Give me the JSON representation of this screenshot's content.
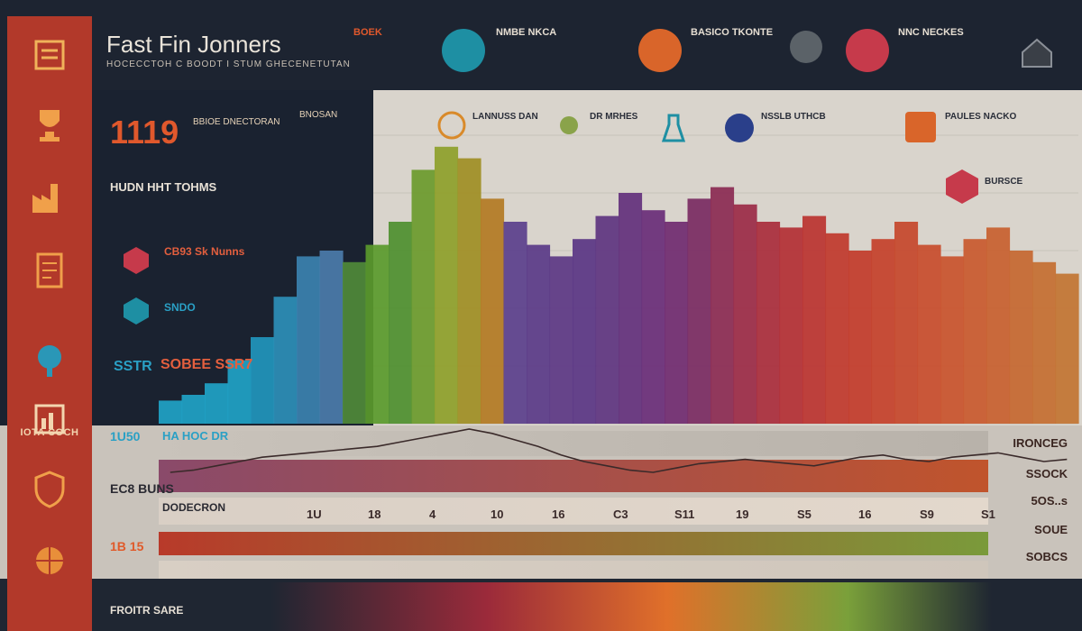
{
  "header": {
    "title": "Fast Fin Jonners",
    "subtitle": "HOCECCTOH C BOODT I STUM GHECENETUTAN",
    "items": [
      {
        "label": "BOEK",
        "icon": "document-icon",
        "color": "#d04a2a"
      },
      {
        "label": "NMBE NKCA",
        "icon": "tablet-icon",
        "color": "#1e8fa3"
      },
      {
        "label": "BASICO TKONTE",
        "icon": "handshake-icon",
        "color": "#d9652a"
      },
      {
        "label": "",
        "icon": "pin-icon",
        "color": "#5b6268"
      },
      {
        "label": "NNC NECKES",
        "icon": "book-icon",
        "color": "#c63a4b"
      },
      {
        "label": "",
        "icon": "house-icon",
        "color": "#3a3f47"
      }
    ]
  },
  "sidebar": {
    "items": [
      {
        "icon": "certificate-icon",
        "caption": ""
      },
      {
        "icon": "trophy-icon",
        "caption": ""
      },
      {
        "icon": "factory-icon",
        "caption": ""
      },
      {
        "icon": "document-icon",
        "caption": ""
      },
      {
        "icon": "tree-icon",
        "caption": ""
      },
      {
        "icon": "chart-icon",
        "caption": "IOTA COCH"
      },
      {
        "icon": "shield-icon",
        "caption": ""
      },
      {
        "icon": "globe-icon",
        "caption": ""
      }
    ]
  },
  "stats": {
    "big_value": "1119",
    "label_1": "BBIOE DNECTORAN",
    "label_2": "BNOSAN",
    "section_head": "HUDN HHT TOHMS",
    "kpi_1": "CB93 Sk Nunns",
    "kpi_2": "SNDO",
    "kpi_3": "SOBEE SSR7",
    "kpi_3_prefix": "SSTR"
  },
  "panel_cards": [
    {
      "label": "LANNUSS DAN",
      "icon": "rocket-icon"
    },
    {
      "label": "DR MRHES",
      "icon": "lightbulb-icon"
    },
    {
      "label": "",
      "icon": "flask-icon"
    },
    {
      "label": "NSSLB UTHCB",
      "icon": "badge-icon"
    },
    {
      "label": "PAULES NACKO",
      "icon": "lab-icon"
    },
    {
      "label": "BURSCE",
      "icon": "tree-icon"
    }
  ],
  "lower_rows": {
    "left_labels": [
      "1U50",
      "EC8 BUNS",
      "1B 15"
    ],
    "left_caps": [
      "HA HOC DR",
      "DODECRON"
    ],
    "right_labels": [
      "IRONCEG",
      "SSOCK",
      "5OS..s",
      "SOUE",
      "SOBCS"
    ],
    "axis_ticks": [
      "1U",
      "18",
      "4",
      "10",
      "16",
      "C3",
      "S11",
      "19",
      "S5",
      "16",
      "S9",
      "S1"
    ]
  },
  "footer": {
    "label": "FROITR SARE"
  },
  "chart_data": {
    "type": "area",
    "title": "",
    "xlabel": "",
    "ylabel": "",
    "ylim": [
      0,
      100
    ],
    "x": [
      0,
      1,
      2,
      3,
      4,
      5,
      6,
      7,
      8,
      9,
      10,
      11,
      12,
      13,
      14,
      15,
      16,
      17,
      18,
      19,
      20,
      21,
      22,
      23,
      24,
      25,
      26,
      27,
      28,
      29,
      30,
      31,
      32,
      33,
      34,
      35,
      36,
      37,
      38,
      39
    ],
    "series": [
      {
        "values": [
          8,
          10,
          14,
          22,
          30,
          44,
          58,
          60,
          56,
          62,
          70,
          88,
          96,
          92,
          78,
          70,
          62,
          58,
          64,
          72,
          80,
          74,
          70,
          78,
          82,
          76,
          70,
          68,
          72,
          66,
          60,
          64,
          70,
          62,
          58,
          64,
          68,
          60,
          56,
          52
        ],
        "colors": [
          "#1fa3c7",
          "#1fa3c7",
          "#1fa3c7",
          "#1fa3c7",
          "#2196bd",
          "#2c8fb8",
          "#3b82b0",
          "#4b7cab",
          "#4f8a3a",
          "#5a9a2c",
          "#4e8f2f",
          "#6b9a2c",
          "#8ea02a",
          "#a08e24",
          "#b37a23",
          "#5b3f8c",
          "#5a3a88",
          "#5c3784",
          "#5a3584",
          "#5e3480",
          "#63307c",
          "#692d78",
          "#702a70",
          "#7a2a62",
          "#8b2a52",
          "#9b2a46",
          "#a92c3c",
          "#b32f34",
          "#bb3330",
          "#c0382c",
          "#c23b2a",
          "#c4402a",
          "#c6462b",
          "#c84c2c",
          "#c9522d",
          "#c9592e",
          "#c8602f",
          "#c66730",
          "#c46e31",
          "#c27432"
        ]
      }
    ],
    "overlay_line": [
      30,
      32,
      36,
      40,
      44,
      46,
      48,
      50,
      52,
      54,
      58,
      62,
      66,
      70,
      66,
      60,
      54,
      46,
      40,
      36,
      32,
      30,
      34,
      38,
      40,
      42,
      40,
      38,
      36,
      40,
      44,
      46,
      42,
      40,
      44,
      46,
      48,
      44,
      40,
      42
    ],
    "grid": true,
    "legend": "none"
  }
}
